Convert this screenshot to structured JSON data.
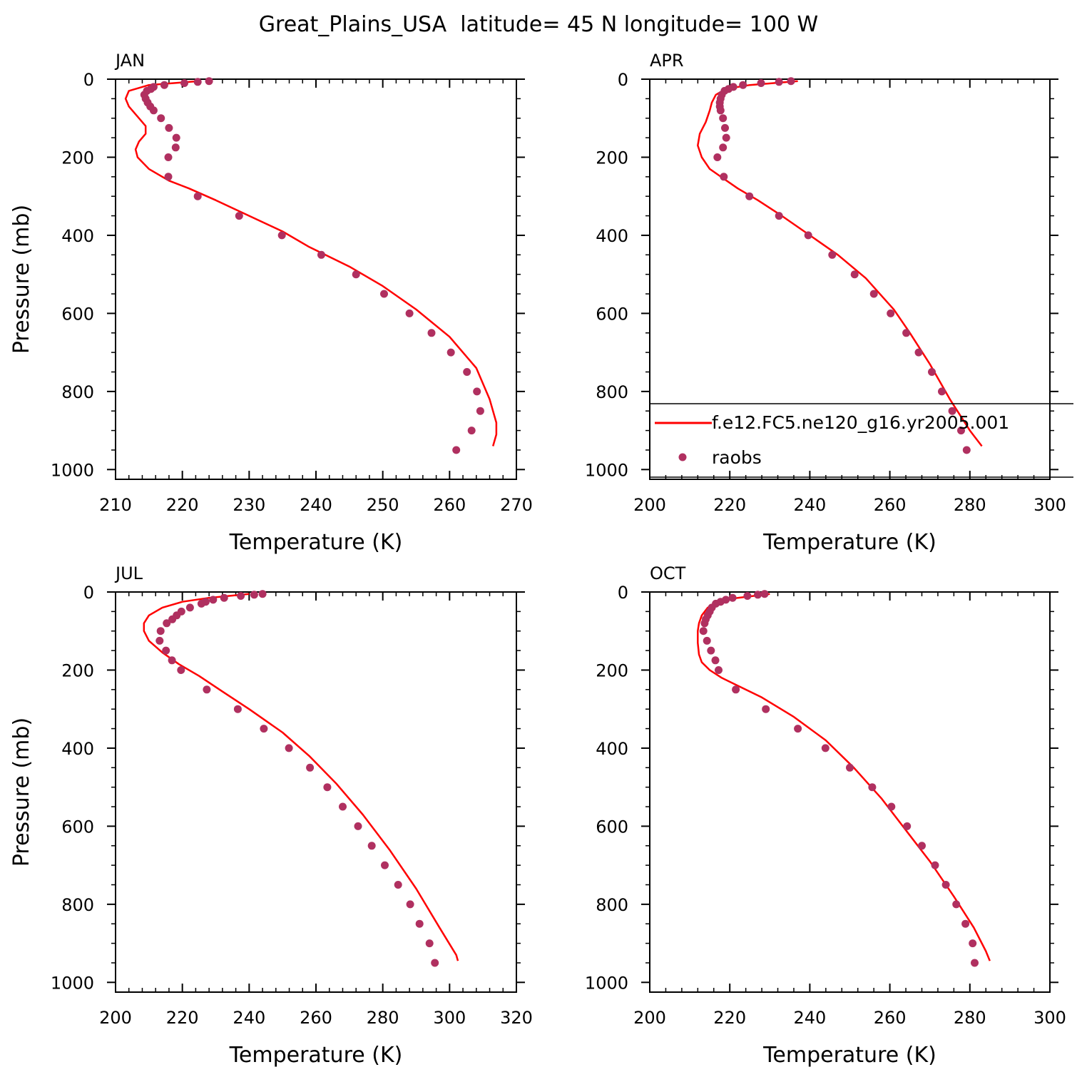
{
  "figure": {
    "title": "Great_Plains_USA  latitude= 45 N longitude= 100 W",
    "colors": {
      "model_line": "#ff0000",
      "obs_marker": "#b03060",
      "axis": "#000000"
    }
  },
  "legend": {
    "items": [
      {
        "label": "f.e12.FC5.ne120_g16.yr2005.001",
        "style": "line",
        "color": "#ff0000"
      },
      {
        "label": "raobs",
        "style": "marker",
        "color": "#b03060"
      }
    ]
  },
  "chart_data": [
    {
      "type": "scatter",
      "title": "JAN",
      "xlabel": "Temperature (K)",
      "ylabel": "Pressure (mb)",
      "xlim": [
        210,
        270
      ],
      "xticks": [
        210,
        220,
        230,
        240,
        250,
        260,
        270
      ],
      "ylim": [
        0,
        1025
      ],
      "yticks": [
        0,
        200,
        400,
        600,
        800,
        1000
      ],
      "y_inverted": true,
      "grid": false,
      "series": [
        {
          "name": "f.e12.FC5.ne120_g16.yr2005.001",
          "kind": "line",
          "x": [
            222.5,
            215.0,
            212.0,
            211.5,
            212.0,
            213.5,
            214.5,
            214.5,
            213.5,
            213.0,
            213.3,
            215.0,
            218.0,
            221.0,
            225.0,
            230.0,
            235.0,
            239.0,
            245.0,
            250.0,
            255.0,
            260.0,
            264.0,
            266.0,
            267.0,
            267.0,
            266.5
          ],
          "y": [
            5,
            15,
            30,
            50,
            70,
            100,
            120,
            140,
            160,
            180,
            200,
            230,
            260,
            280,
            310,
            350,
            390,
            430,
            480,
            530,
            590,
            660,
            740,
            820,
            880,
            910,
            940
          ]
        },
        {
          "name": "raobs",
          "kind": "markers",
          "x": [
            224.0,
            222.3,
            220.3,
            217.3,
            215.7,
            215.3,
            214.7,
            214.3,
            214.5,
            214.8,
            215.2,
            215.7,
            216.8,
            218.0,
            219.1,
            219.0,
            217.9,
            217.9,
            222.3,
            228.5,
            234.9,
            240.8,
            246.0,
            250.2,
            254.0,
            257.3,
            260.2,
            262.6,
            264.1,
            264.6,
            263.3,
            261.0
          ],
          "y": [
            5,
            7,
            10,
            15,
            20,
            25,
            30,
            40,
            50,
            60,
            70,
            80,
            100,
            125,
            150,
            175,
            200,
            250,
            300,
            350,
            400,
            450,
            500,
            550,
            600,
            650,
            700,
            750,
            800,
            850,
            900,
            950
          ]
        }
      ]
    },
    {
      "type": "scatter",
      "title": "APR",
      "xlabel": "Temperature (K)",
      "ylabel": "Pressure (mb)",
      "xlim": [
        200,
        300
      ],
      "xticks": [
        200,
        220,
        240,
        260,
        280,
        300
      ],
      "ylim": [
        0,
        1025
      ],
      "yticks": [
        0,
        200,
        400,
        600,
        800,
        1000
      ],
      "y_inverted": true,
      "grid": false,
      "series": [
        {
          "name": "f.e12.FC5.ne120_g16.yr2005.001",
          "kind": "line",
          "x": [
            237.0,
            225.0,
            219.0,
            216.5,
            215.5,
            215.0,
            214.0,
            212.5,
            212.0,
            213.0,
            215.0,
            218.5,
            222.0,
            227.0,
            233.0,
            240.0,
            247.0,
            254.0,
            261.0,
            265.0,
            270.0,
            275.0,
            280.0,
            283.0
          ],
          "y": [
            5,
            15,
            25,
            40,
            60,
            80,
            110,
            140,
            170,
            200,
            230,
            255,
            280,
            310,
            350,
            400,
            450,
            510,
            590,
            650,
            730,
            820,
            900,
            940
          ]
        },
        {
          "name": "raobs",
          "kind": "markers",
          "x": [
            235.3,
            232.3,
            227.8,
            223.3,
            220.9,
            219.7,
            218.7,
            218.0,
            217.7,
            217.5,
            217.5,
            217.7,
            218.3,
            218.8,
            219.1,
            218.3,
            216.9,
            218.5,
            224.9,
            232.3,
            239.6,
            245.6,
            251.2,
            256.0,
            260.2,
            264.1,
            267.2,
            270.5,
            273.0,
            275.6,
            277.8,
            279.2
          ],
          "y": [
            5,
            7,
            10,
            15,
            20,
            25,
            30,
            40,
            50,
            60,
            70,
            80,
            100,
            125,
            150,
            175,
            200,
            250,
            300,
            350,
            400,
            450,
            500,
            550,
            600,
            650,
            700,
            750,
            800,
            850,
            900,
            950
          ]
        }
      ]
    },
    {
      "type": "scatter",
      "title": "JUL",
      "xlabel": "Temperature (K)",
      "ylabel": "Pressure (mb)",
      "xlim": [
        200,
        320
      ],
      "xticks": [
        200,
        220,
        240,
        260,
        280,
        300,
        320
      ],
      "ylim": [
        0,
        1025
      ],
      "yticks": [
        0,
        200,
        400,
        600,
        800,
        1000
      ],
      "y_inverted": true,
      "grid": false,
      "series": [
        {
          "name": "f.e12.FC5.ne120_g16.yr2005.001",
          "kind": "line",
          "x": [
            240.0,
            228.0,
            220.0,
            214.0,
            210.0,
            208.5,
            208.5,
            210.0,
            214.0,
            219.0,
            225.0,
            232.0,
            240.0,
            250.0,
            258.0,
            266.0,
            274.0,
            282.0,
            290.0,
            297.0,
            302.0,
            302.5
          ],
          "y": [
            5,
            15,
            25,
            40,
            60,
            80,
            100,
            125,
            155,
            185,
            215,
            255,
            300,
            360,
            420,
            490,
            570,
            660,
            760,
            860,
            930,
            945
          ]
        },
        {
          "name": "raobs",
          "kind": "markers",
          "x": [
            244.0,
            241.5,
            237.5,
            232.5,
            229.2,
            227.0,
            225.7,
            222.3,
            219.7,
            218.3,
            217.0,
            215.3,
            213.5,
            213.2,
            215.1,
            216.9,
            219.6,
            227.3,
            236.6,
            244.4,
            251.9,
            258.2,
            263.4,
            268.0,
            272.6,
            276.7,
            280.6,
            284.6,
            288.2,
            291.0,
            294.0,
            295.6
          ],
          "y": [
            5,
            7,
            10,
            15,
            20,
            25,
            30,
            40,
            50,
            60,
            70,
            80,
            100,
            125,
            150,
            175,
            200,
            250,
            300,
            350,
            400,
            450,
            500,
            550,
            600,
            650,
            700,
            750,
            800,
            850,
            900,
            950
          ]
        }
      ]
    },
    {
      "type": "scatter",
      "title": "OCT",
      "xlabel": "Temperature (K)",
      "ylabel": "Pressure (mb)",
      "xlim": [
        200,
        300
      ],
      "xticks": [
        200,
        220,
        240,
        260,
        280,
        300
      ],
      "ylim": [
        0,
        1025
      ],
      "yticks": [
        0,
        200,
        400,
        600,
        800,
        1000
      ],
      "y_inverted": true,
      "grid": false,
      "series": [
        {
          "name": "f.e12.FC5.ne120_g16.yr2005.001",
          "kind": "line",
          "x": [
            230.0,
            222.0,
            217.0,
            214.5,
            213.0,
            212.3,
            212.0,
            212.0,
            212.3,
            213.0,
            215.0,
            218.0,
            222.0,
            228.0,
            236.0,
            244.0,
            251.0,
            258.0,
            264.0,
            270.0,
            276.0,
            281.0,
            284.0,
            285.0
          ],
          "y": [
            5,
            15,
            25,
            40,
            60,
            80,
            100,
            130,
            160,
            180,
            200,
            220,
            240,
            270,
            320,
            380,
            450,
            530,
            610,
            690,
            780,
            860,
            920,
            945
          ]
        },
        {
          "name": "raobs",
          "kind": "markers",
          "x": [
            228.7,
            227.0,
            224.4,
            220.7,
            219.0,
            217.7,
            216.5,
            215.5,
            215.0,
            214.5,
            214.0,
            213.7,
            213.4,
            214.3,
            215.3,
            216.4,
            217.2,
            221.5,
            229.0,
            237.0,
            243.9,
            250.0,
            255.6,
            260.4,
            264.3,
            268.0,
            271.3,
            274.0,
            276.6,
            278.9,
            280.7,
            281.2
          ],
          "y": [
            5,
            7,
            10,
            15,
            20,
            25,
            30,
            40,
            50,
            60,
            70,
            80,
            100,
            125,
            150,
            175,
            200,
            250,
            300,
            350,
            400,
            450,
            500,
            550,
            600,
            650,
            700,
            750,
            800,
            850,
            900,
            950
          ]
        }
      ]
    }
  ]
}
